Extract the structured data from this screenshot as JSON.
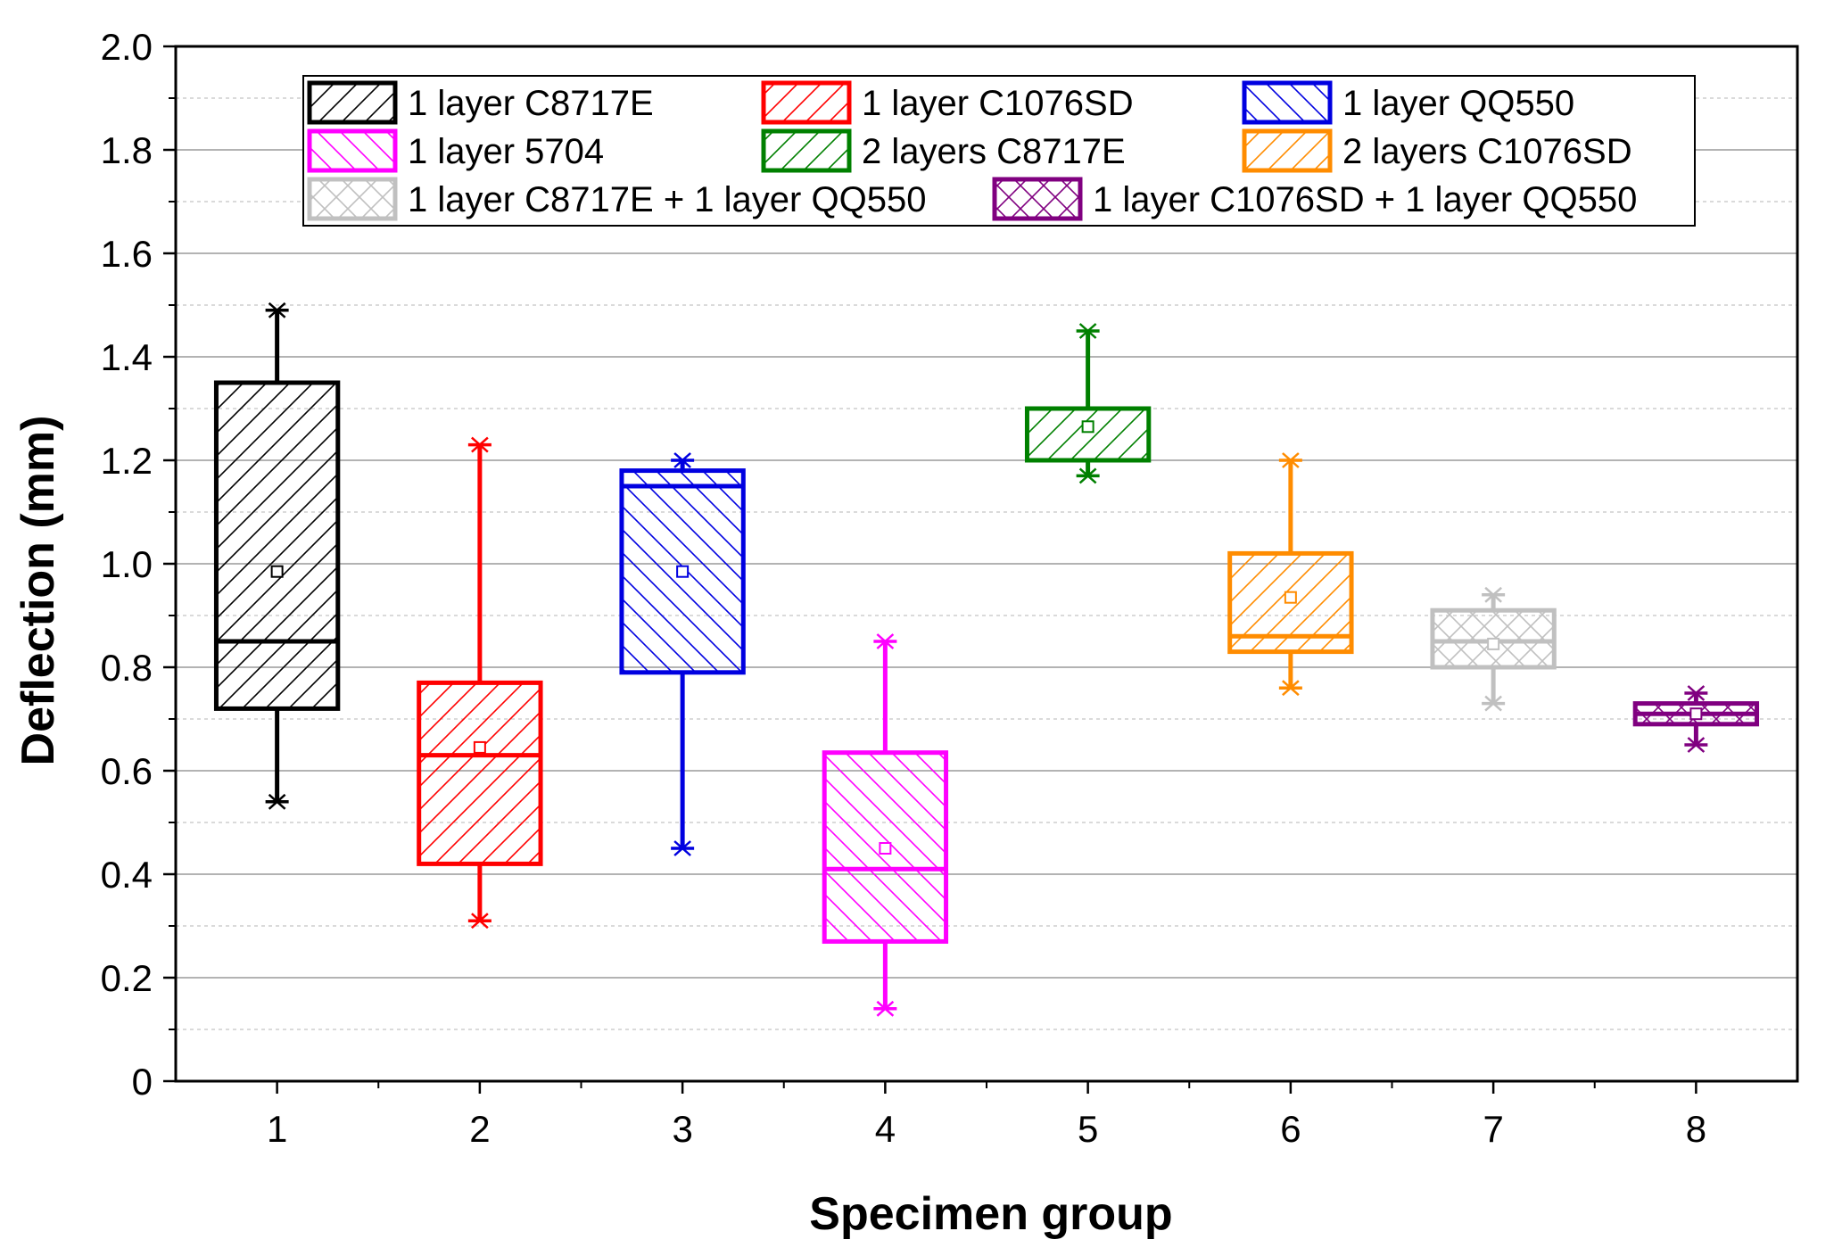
{
  "chart_data": {
    "type": "box",
    "xlabel": "Specimen group",
    "ylabel": "Deflection (mm)",
    "ylim": [
      0,
      2.0
    ],
    "xlim": [
      0.5,
      8.5
    ],
    "y_ticks": [
      "0",
      "0.2",
      "0.4",
      "0.6",
      "0.8",
      "1.0",
      "1.2",
      "1.4",
      "1.6",
      "1.8",
      "2.0"
    ],
    "y_tick_values": [
      0,
      0.2,
      0.4,
      0.6,
      0.8,
      1.0,
      1.2,
      1.4,
      1.6,
      1.8,
      2.0
    ],
    "x_ticks": [
      "1",
      "2",
      "3",
      "4",
      "5",
      "6",
      "7",
      "8"
    ],
    "grid": true,
    "legend_position": "top",
    "series": [
      {
        "name": "1 layer C8717E",
        "group": 1,
        "color": "#000000",
        "pattern": "diag-right",
        "min": 0.54,
        "q1": 0.72,
        "median": 0.85,
        "q3": 1.35,
        "max": 1.49,
        "mean": 0.985
      },
      {
        "name": "1 layer C1076SD",
        "group": 2,
        "color": "#ff0000",
        "pattern": "diag-right",
        "min": 0.31,
        "q1": 0.42,
        "median": 0.63,
        "q3": 0.77,
        "max": 1.23,
        "mean": 0.645
      },
      {
        "name": "1 layer QQ550",
        "group": 3,
        "color": "#0000e0",
        "pattern": "diag-left",
        "min": 0.45,
        "q1": 0.79,
        "median": 1.15,
        "q3": 1.18,
        "max": 1.2,
        "mean": 0.985
      },
      {
        "name": "1 layer 5704",
        "group": 4,
        "color": "#ff00ff",
        "pattern": "diag-left",
        "min": 0.14,
        "q1": 0.27,
        "median": 0.41,
        "q3": 0.635,
        "max": 0.85,
        "mean": 0.45
      },
      {
        "name": "2 layers C8717E",
        "group": 5,
        "color": "#008000",
        "pattern": "diag-right",
        "min": 1.17,
        "q1": 1.2,
        "median": 1.2,
        "q3": 1.3,
        "max": 1.45,
        "mean": 1.265
      },
      {
        "name": "2 layers C1076SD",
        "group": 6,
        "color": "#ff8c00",
        "pattern": "diag-right",
        "min": 0.76,
        "q1": 0.83,
        "median": 0.86,
        "q3": 1.02,
        "max": 1.2,
        "mean": 0.935
      },
      {
        "name": "1 layer C8717E + 1 layer QQ550",
        "group": 7,
        "color": "#c0c0c0",
        "pattern": "cross",
        "min": 0.73,
        "q1": 0.8,
        "median": 0.85,
        "q3": 0.91,
        "max": 0.94,
        "mean": 0.845
      },
      {
        "name": "1 layer C1076SD + 1 layer QQ550",
        "group": 8,
        "color": "#800080",
        "pattern": "cross",
        "min": 0.65,
        "q1": 0.69,
        "median": 0.71,
        "q3": 0.73,
        "max": 0.75,
        "mean": 0.71
      }
    ]
  }
}
